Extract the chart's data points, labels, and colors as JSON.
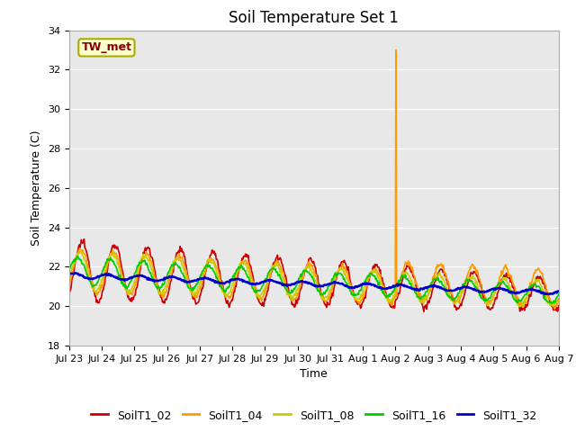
{
  "title": "Soil Temperature Set 1",
  "xlabel": "Time",
  "ylabel": "Soil Temperature (C)",
  "ylim": [
    18,
    34
  ],
  "yticks": [
    18,
    20,
    22,
    24,
    26,
    28,
    30,
    32,
    34
  ],
  "background_color": "#e8e8e8",
  "annotation_text": "TW_met",
  "annotation_box_color": "#ffffcc",
  "annotation_text_color": "#880000",
  "series_names": [
    "SoilT1_02",
    "SoilT1_04",
    "SoilT1_08",
    "SoilT1_16",
    "SoilT1_32"
  ],
  "series_colors": [
    "#cc0000",
    "#ff9900",
    "#cccc00",
    "#00cc00",
    "#0000cc"
  ],
  "series_linewidths": [
    1.2,
    1.2,
    1.2,
    1.2,
    1.8
  ],
  "xtick_labels": [
    "Jul 23",
    "Jul 24",
    "Jul 25",
    "Jul 26",
    "Jul 27",
    "Jul 28",
    "Jul 29",
    "Jul 30",
    "Jul 31",
    "Aug 1",
    "Aug 2",
    "Aug 3",
    "Aug 4",
    "Aug 5",
    "Aug 6",
    "Aug 7"
  ],
  "num_days": 15,
  "points_per_day": 48,
  "spike_day": 10,
  "spike_value": 33.0
}
